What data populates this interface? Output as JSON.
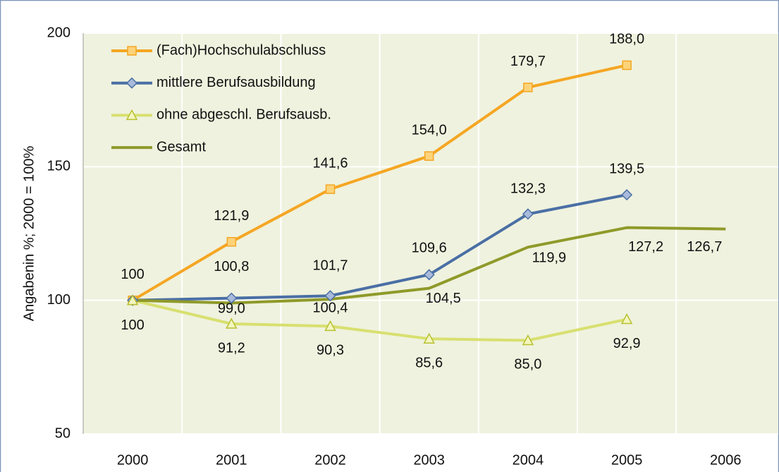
{
  "chart_data": {
    "type": "line",
    "ylabel": "Angabenin %; 2000 = 100%",
    "categories": [
      "2000",
      "2001",
      "2002",
      "2003",
      "2004",
      "2005",
      "2006"
    ],
    "ylim": [
      50,
      200
    ],
    "yticks": [
      50,
      100,
      150,
      200
    ],
    "legend": "top-left",
    "series": [
      {
        "name": "(Fach)Hochschulabschluss",
        "color": "#f5a623",
        "marker": "square",
        "marker_fill": "#fdd37a",
        "values": [
          100,
          121.9,
          141.6,
          154.0,
          179.7,
          188.0,
          null
        ],
        "value_labels": [
          "100",
          "121,9",
          "141,6",
          "154,0",
          "179,7",
          "188,0",
          null
        ]
      },
      {
        "name": "mittlere Berufsausbildung",
        "color": "#4a6fa5",
        "marker": "diamond",
        "marker_fill": "#a9bbdb",
        "values": [
          100,
          100.8,
          101.7,
          109.6,
          132.3,
          139.5,
          null
        ],
        "value_labels": [
          null,
          "100,8",
          "101,7",
          "109,6",
          "132,3",
          "139,5",
          null
        ]
      },
      {
        "name": "ohne abgeschl. Berufsausb.",
        "color": "#d8e070",
        "marker": "triangle",
        "marker_fill": "#f3f6c0",
        "values": [
          100,
          91.2,
          90.3,
          85.6,
          85.0,
          92.9,
          null
        ],
        "value_labels": [
          "100",
          "91,2",
          "90,3",
          "85,6",
          "85,0",
          "92,9",
          null
        ]
      },
      {
        "name": "Gesamt",
        "color": "#8f9a2a",
        "marker": null,
        "values": [
          100,
          99.0,
          100.4,
          104.5,
          119.9,
          127.2,
          126.7
        ],
        "value_labels": [
          null,
          "99,0",
          "100,4",
          "104,5",
          "119,9",
          "127,2",
          "126,7"
        ]
      }
    ]
  }
}
